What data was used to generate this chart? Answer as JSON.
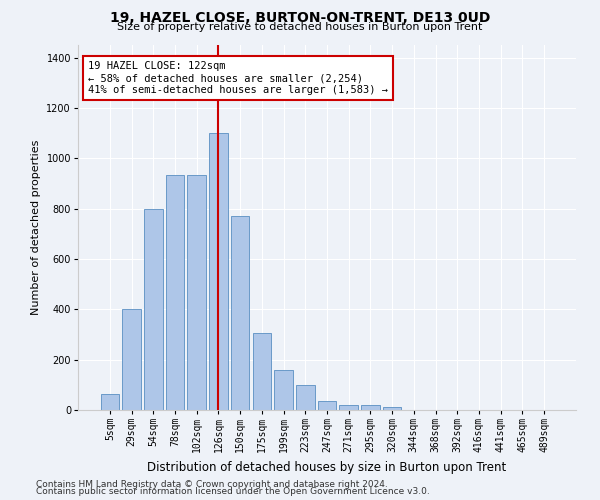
{
  "title1": "19, HAZEL CLOSE, BURTON-ON-TRENT, DE13 0UD",
  "title2": "Size of property relative to detached houses in Burton upon Trent",
  "xlabel": "Distribution of detached houses by size in Burton upon Trent",
  "ylabel": "Number of detached properties",
  "bar_labels": [
    "5sqm",
    "29sqm",
    "54sqm",
    "78sqm",
    "102sqm",
    "126sqm",
    "150sqm",
    "175sqm",
    "199sqm",
    "223sqm",
    "247sqm",
    "271sqm",
    "295sqm",
    "320sqm",
    "344sqm",
    "368sqm",
    "392sqm",
    "416sqm",
    "441sqm",
    "465sqm",
    "489sqm"
  ],
  "bar_values": [
    65,
    400,
    800,
    935,
    935,
    1100,
    770,
    305,
    160,
    100,
    35,
    20,
    20,
    10,
    0,
    0,
    0,
    0,
    0,
    0,
    0
  ],
  "bar_color": "#aec6e8",
  "bar_edge_color": "#5a8fc2",
  "vline_color": "#cc0000",
  "vline_pos": 5.0,
  "ylim": [
    0,
    1450
  ],
  "yticks": [
    0,
    200,
    400,
    600,
    800,
    1000,
    1200,
    1400
  ],
  "annotation_title": "19 HAZEL CLOSE: 122sqm",
  "annotation_line1": "← 58% of detached houses are smaller (2,254)",
  "annotation_line2": "41% of semi-detached houses are larger (1,583) →",
  "annotation_box_color": "#ffffff",
  "annotation_box_edge": "#cc0000",
  "footer1": "Contains HM Land Registry data © Crown copyright and database right 2024.",
  "footer2": "Contains public sector information licensed under the Open Government Licence v3.0.",
  "bg_color": "#eef2f8",
  "plot_bg_color": "#eef2f8",
  "grid_color": "#ffffff",
  "title1_fontsize": 10,
  "title2_fontsize": 8,
  "xlabel_fontsize": 8.5,
  "ylabel_fontsize": 8,
  "tick_fontsize": 7,
  "footer_fontsize": 6.5,
  "annotation_fontsize": 7.5
}
